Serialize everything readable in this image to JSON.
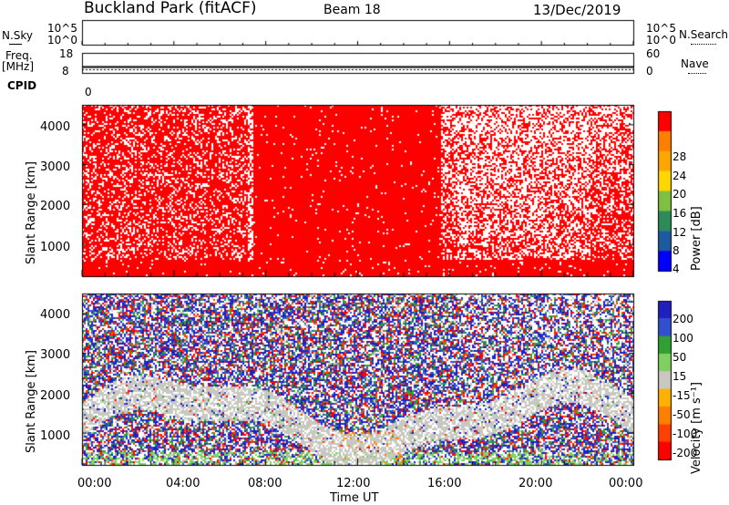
{
  "header": {
    "station": "Buckland Park (fitACF)",
    "beam": "Beam 18",
    "date": "13/Dec/2019"
  },
  "top_panels": {
    "nsky_label": "N.Sky",
    "nsky_ticks": [
      "10^5",
      "10^0"
    ],
    "nsearch_label": "N.Search",
    "nsearch_ticks": [
      "10^5",
      "10^0"
    ],
    "freq_label_line1": "Freq.",
    "freq_label_line2": "[MHz]",
    "freq_ticks": [
      "18",
      "8"
    ],
    "nave_label": "Nave",
    "nave_ticks": [
      "60",
      "0"
    ],
    "cpid_label": "CPID",
    "cpid_value": "0"
  },
  "chart_data": [
    {
      "type": "heatmap",
      "name": "power",
      "ylabel": "Slant Range [km]",
      "y_ticks": [
        "1000",
        "2000",
        "3000",
        "4000"
      ],
      "ylim": [
        200,
        4500
      ],
      "colorbar_label": "Power [dB]",
      "colorbar_ticks": [
        "28",
        "24",
        "20",
        "16",
        "12",
        "8",
        "4"
      ],
      "colorbar_colors": [
        "#ff0000",
        "#ff7f00",
        "#ffa500",
        "#ffd700",
        "#80c040",
        "#2e8b57",
        "#1e5aa0",
        "#0000ff"
      ],
      "dominant_color": "#ff0000"
    },
    {
      "type": "heatmap",
      "name": "velocity",
      "ylabel": "Slant Range [km]",
      "y_ticks": [
        "1000",
        "2000",
        "3000",
        "4000"
      ],
      "ylim": [
        200,
        4500
      ],
      "colorbar_label": "Velocity [m s⁻¹]",
      "colorbar_ticks": [
        "200",
        "100",
        "50",
        "15",
        "-15",
        "-50",
        "-100",
        "-200"
      ],
      "colorbar_colors": [
        "#2020c0",
        "#3050d0",
        "#30a030",
        "#80d060",
        "#c8c8c0",
        "#ffb000",
        "#ff8000",
        "#ff4000",
        "#ff0000"
      ]
    }
  ],
  "x_axis": {
    "label": "Time UT",
    "ticks": [
      "00:00",
      "04:00",
      "08:00",
      "12:00",
      "16:00",
      "20:00",
      "00:00"
    ]
  }
}
